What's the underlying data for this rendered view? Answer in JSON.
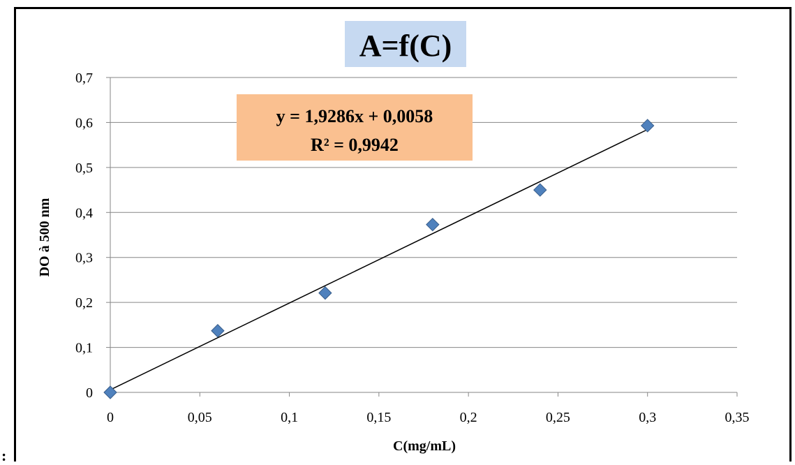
{
  "stray_mark": ":",
  "colors": {
    "marker": "#4F81BD",
    "marker_stroke": "#385D8A",
    "grid": "#868686",
    "trendline": "#000000",
    "title_bg": "#C6D9F1",
    "equation_bg": "#FAC090"
  },
  "chart_data": {
    "type": "scatter",
    "title": "A=f(C)",
    "xlabel": "C(mg/mL)",
    "ylabel": "DO à 500 nm",
    "xlim": [
      0,
      0.35
    ],
    "ylim": [
      0,
      0.7
    ],
    "x_ticks": [
      0,
      0.05,
      0.1,
      0.15,
      0.2,
      0.25,
      0.3,
      0.35
    ],
    "y_ticks": [
      0,
      0.1,
      0.2,
      0.3,
      0.4,
      0.5,
      0.6,
      0.7
    ],
    "x_tick_labels": [
      "0",
      "0,05",
      "0,1",
      "0,15",
      "0,2",
      "0,25",
      "0,3",
      "0,35"
    ],
    "y_tick_labels": [
      "0",
      "0,1",
      "0,2",
      "0,3",
      "0,4",
      "0,5",
      "0,6",
      "0,7"
    ],
    "grid": "horizontal",
    "legend": "none",
    "series": [
      {
        "marker": "diamond",
        "x": [
          0,
          0.06,
          0.12,
          0.18,
          0.24,
          0.3
        ],
        "y": [
          0,
          0.137,
          0.221,
          0.373,
          0.45,
          0.593
        ]
      }
    ],
    "trendline": {
      "type": "linear",
      "slope": 1.9286,
      "intercept": 0.0058,
      "x_range": [
        0,
        0.3
      ],
      "equation_label": "y = 1,9286x + 0,0058",
      "r2_label": "R² = 0,9942"
    }
  }
}
